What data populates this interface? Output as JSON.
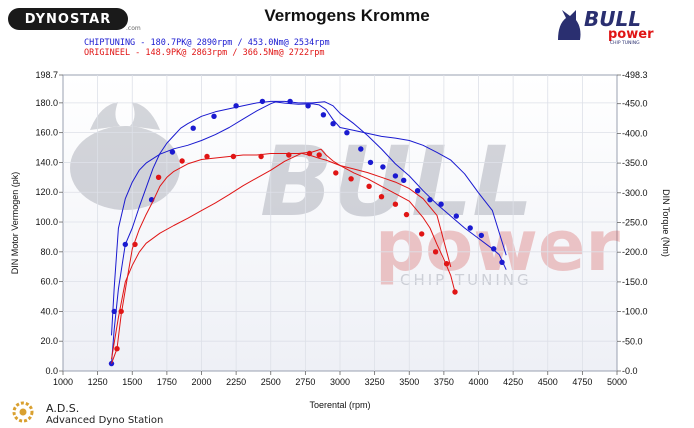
{
  "header": {
    "title": "Vermogens Kromme",
    "legend_tuned": "CHIPTUNING  - 180.7PK@ 2890rpm / 453.0Nm@ 2534rpm",
    "legend_stock": "ORIGINEEL  - 148.9PK@ 2863rpm / 366.5Nm@ 2722rpm",
    "brand_left": "DYNOSTAR",
    "brand_left_domain": ".com",
    "brand_right_line1": "BULL",
    "brand_right_line2": "power",
    "brand_right_sub": "CHIP TUNING",
    "watermark_line1": "BULL",
    "watermark_line2": "power",
    "watermark_sub": "CHIP TUNING",
    "footer_title": "A.D.S.",
    "footer_sub": "Advanced Dyno Station"
  },
  "colors": {
    "tuned": "#1a1ad0",
    "stock": "#e01515",
    "grid": "#dddddd",
    "plot_bg_top": "#ffffff",
    "plot_bg_bottom": "#eef0f6"
  },
  "chart_data": {
    "type": "line",
    "xlabel": "Toerental (rpm)",
    "ylabel_left": "DIN Motor Vermogen (pk)",
    "ylabel_right": "DIN Torque (Nm)",
    "xlim": [
      1000,
      5000
    ],
    "ylim_left": [
      0,
      198.7
    ],
    "ylim_right": [
      0,
      498.3
    ],
    "x_ticks": [
      "1000",
      "1250",
      "1500",
      "1750",
      "2000",
      "2250",
      "2500",
      "2750",
      "3000",
      "3250",
      "3500",
      "3750",
      "4000",
      "4250",
      "4500",
      "4750",
      "5000"
    ],
    "y_ticks_left": [
      "0.0",
      "20.0",
      "40.0",
      "60.0",
      "80.0",
      "100.0",
      "120.0",
      "140.0",
      "160.0",
      "180.0",
      "198.7"
    ],
    "y_ticks_right": [
      "0.0",
      "50.0",
      "100.0",
      "150.0",
      "200.0",
      "250.0",
      "300.0",
      "350.0",
      "400.0",
      "450.0",
      "498.3"
    ],
    "grid": true,
    "series": [
      {
        "name": "CHIPTUNING",
        "kind": "power",
        "axis": "left",
        "color": "#1a1ad0",
        "x": [
          1350,
          1370,
          1400,
          1450,
          1500,
          1550,
          1600,
          1650,
          1700,
          1750,
          1800,
          1850,
          1900,
          2000,
          2100,
          2200,
          2300,
          2400,
          2500,
          2600,
          2700,
          2800,
          2890,
          2950,
          3000,
          3100,
          3200,
          3300,
          3400,
          3500,
          3600,
          3700,
          3800,
          3900,
          4000,
          4100,
          4150,
          4200
        ],
        "y": [
          5,
          28,
          55,
          85,
          96,
          110,
          123,
          136,
          146,
          153,
          158,
          163,
          166,
          171,
          174,
          176,
          178,
          180,
          181,
          181,
          180,
          180,
          180.7,
          178,
          173,
          166,
          158,
          149,
          139,
          131,
          121,
          112,
          104,
          96,
          89,
          82,
          78,
          68
        ],
        "markers_x": [
          1350,
          1370,
          1450,
          1640,
          1790,
          1940,
          2090,
          2250,
          2440,
          2640,
          2770,
          2880,
          2950,
          3050,
          3150,
          3220,
          3310,
          3400,
          3460,
          3560,
          3650,
          3730,
          3840,
          3940,
          4020,
          4110,
          4170
        ],
        "markers_y": [
          5,
          40,
          85,
          115,
          147,
          163,
          171,
          178,
          181,
          181,
          178,
          172,
          166,
          160,
          149,
          140,
          137,
          131,
          128,
          121,
          115,
          112,
          104,
          96,
          91,
          82,
          73
        ]
      },
      {
        "name": "CHIPTUNING",
        "kind": "torque",
        "axis": "right",
        "color": "#1a1ad0",
        "x": [
          1350,
          1370,
          1400,
          1450,
          1500,
          1550,
          1600,
          1700,
          1800,
          1900,
          2000,
          2100,
          2200,
          2300,
          2400,
          2500,
          2534,
          2600,
          2700,
          2800,
          2850,
          2900,
          2950,
          3000,
          3100,
          3200,
          3300,
          3400,
          3500,
          3600,
          3700,
          3800,
          3900,
          4000,
          4100,
          4200
        ],
        "y": [
          60,
          140,
          240,
          290,
          318,
          338,
          350,
          365,
          374,
          380,
          388,
          398,
          410,
          424,
          438,
          450,
          453,
          451,
          449,
          450,
          448,
          440,
          423,
          410,
          405,
          400,
          395,
          392,
          388,
          380,
          368,
          355,
          332,
          300,
          270,
          195
        ]
      },
      {
        "name": "ORIGINEEL",
        "kind": "power",
        "axis": "left",
        "color": "#e01515",
        "x": [
          1350,
          1390,
          1420,
          1460,
          1500,
          1550,
          1600,
          1650,
          1700,
          1750,
          1800,
          1900,
          2000,
          2100,
          2200,
          2300,
          2400,
          2500,
          2600,
          2700,
          2800,
          2863,
          2900,
          2950,
          3000,
          3100,
          3200,
          3300,
          3400,
          3500,
          3600,
          3650,
          3700,
          3750,
          3800,
          3830
        ],
        "y": [
          5,
          15,
          38,
          60,
          82,
          95,
          105,
          114,
          124,
          130,
          134,
          139,
          142,
          143,
          144,
          145,
          145,
          146,
          146,
          146,
          147,
          148.9,
          145,
          141,
          138,
          133,
          129,
          124,
          119,
          114,
          103,
          96,
          85,
          75,
          64,
          53
        ],
        "markers_x": [
          1390,
          1420,
          1520,
          1690,
          1860,
          2040,
          2230,
          2430,
          2630,
          2780,
          2850,
          2970,
          3080,
          3210,
          3300,
          3400,
          3480,
          3590,
          3690,
          3770,
          3830
        ],
        "markers_y": [
          15,
          40,
          85,
          130,
          141,
          144,
          144,
          144,
          145,
          146,
          145,
          133,
          129,
          124,
          117,
          112,
          105,
          92,
          80,
          72,
          53
        ]
      },
      {
        "name": "ORIGINEEL",
        "kind": "torque",
        "axis": "right",
        "color": "#e01515",
        "x": [
          1350,
          1400,
          1450,
          1500,
          1550,
          1600,
          1700,
          1800,
          1900,
          2000,
          2100,
          2200,
          2300,
          2400,
          2500,
          2600,
          2722,
          2800,
          2850,
          2900,
          3000,
          3100,
          3200,
          3300,
          3400,
          3500,
          3600,
          3700,
          3800
        ],
        "y": [
          20,
          90,
          150,
          178,
          200,
          215,
          232,
          245,
          257,
          270,
          283,
          297,
          312,
          325,
          338,
          353,
          366.5,
          362,
          358,
          355,
          346,
          340,
          334,
          326,
          318,
          307,
          290,
          262,
          175
        ]
      }
    ]
  }
}
